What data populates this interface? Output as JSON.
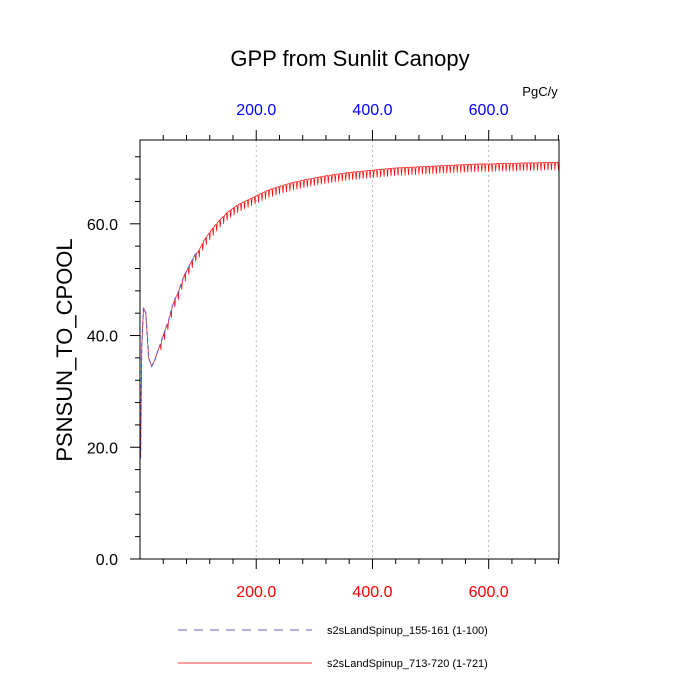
{
  "chart_data": {
    "type": "line",
    "title": "GPP from Sunlit Canopy",
    "ylabel": "PSNSUN_TO_CPOOL",
    "units": "PgC/y",
    "xlim": [
      0,
      721
    ],
    "ylim": [
      0,
      75
    ],
    "y_ticks": [
      {
        "value": 0,
        "label": "0.0"
      },
      {
        "value": 20,
        "label": "20.0"
      },
      {
        "value": 40,
        "label": "40.0"
      },
      {
        "value": 60,
        "label": "60.0"
      }
    ],
    "x_ticks_bottom": [
      {
        "value": 200,
        "label": "200.0"
      },
      {
        "value": 400,
        "label": "400.0"
      },
      {
        "value": 600,
        "label": "600.0"
      }
    ],
    "x_ticks_top": [
      {
        "value": 200,
        "label": "200.0"
      },
      {
        "value": 400,
        "label": "400.0"
      },
      {
        "value": 600,
        "label": "600.0"
      }
    ],
    "grid": "vertical dotted",
    "series": [
      {
        "name": "s2sLandSpinup_155-161 (1-100)",
        "color": "#6a5acd",
        "style": "dashed",
        "x": [
          1,
          3,
          6,
          10,
          15,
          20,
          25,
          30,
          35,
          40,
          45,
          50,
          55,
          60,
          65,
          70,
          75,
          80,
          85,
          90,
          95,
          100
        ],
        "y": [
          18,
          38,
          45,
          44,
          36,
          34.5,
          35.5,
          37,
          38.5,
          40,
          41.5,
          43,
          45,
          46.5,
          47.5,
          49,
          50.5,
          51.5,
          52.5,
          53.5,
          54.5,
          55
        ]
      },
      {
        "name": "s2sLandSpinup_713-720 (1-721)",
        "color": "#ff0000",
        "style": "solid",
        "x": [
          1,
          3,
          6,
          10,
          15,
          20,
          25,
          30,
          35,
          40,
          45,
          50,
          55,
          60,
          65,
          70,
          75,
          80,
          85,
          90,
          95,
          100,
          110,
          120,
          130,
          140,
          150,
          160,
          170,
          180,
          190,
          200,
          220,
          240,
          260,
          280,
          300,
          320,
          340,
          360,
          380,
          400,
          420,
          440,
          460,
          480,
          500,
          520,
          540,
          560,
          580,
          600,
          620,
          640,
          660,
          680,
          700,
          721
        ],
        "y": [
          18,
          38,
          45,
          44,
          36,
          34.5,
          35.5,
          37,
          38.5,
          40,
          41.5,
          43,
          45,
          46.5,
          47.5,
          49,
          50.5,
          51.5,
          52.5,
          53.5,
          54.5,
          55,
          57,
          58.5,
          59.8,
          61,
          62,
          62.8,
          63.5,
          64,
          64.5,
          65,
          66,
          66.7,
          67.3,
          67.8,
          68.2,
          68.6,
          68.9,
          69.2,
          69.4,
          69.6,
          69.8,
          70,
          70.1,
          70.2,
          70.3,
          70.4,
          70.5,
          70.6,
          70.7,
          70.7,
          70.8,
          70.8,
          70.9,
          70.9,
          71,
          71
        ]
      }
    ],
    "legend_position": "bottom"
  }
}
